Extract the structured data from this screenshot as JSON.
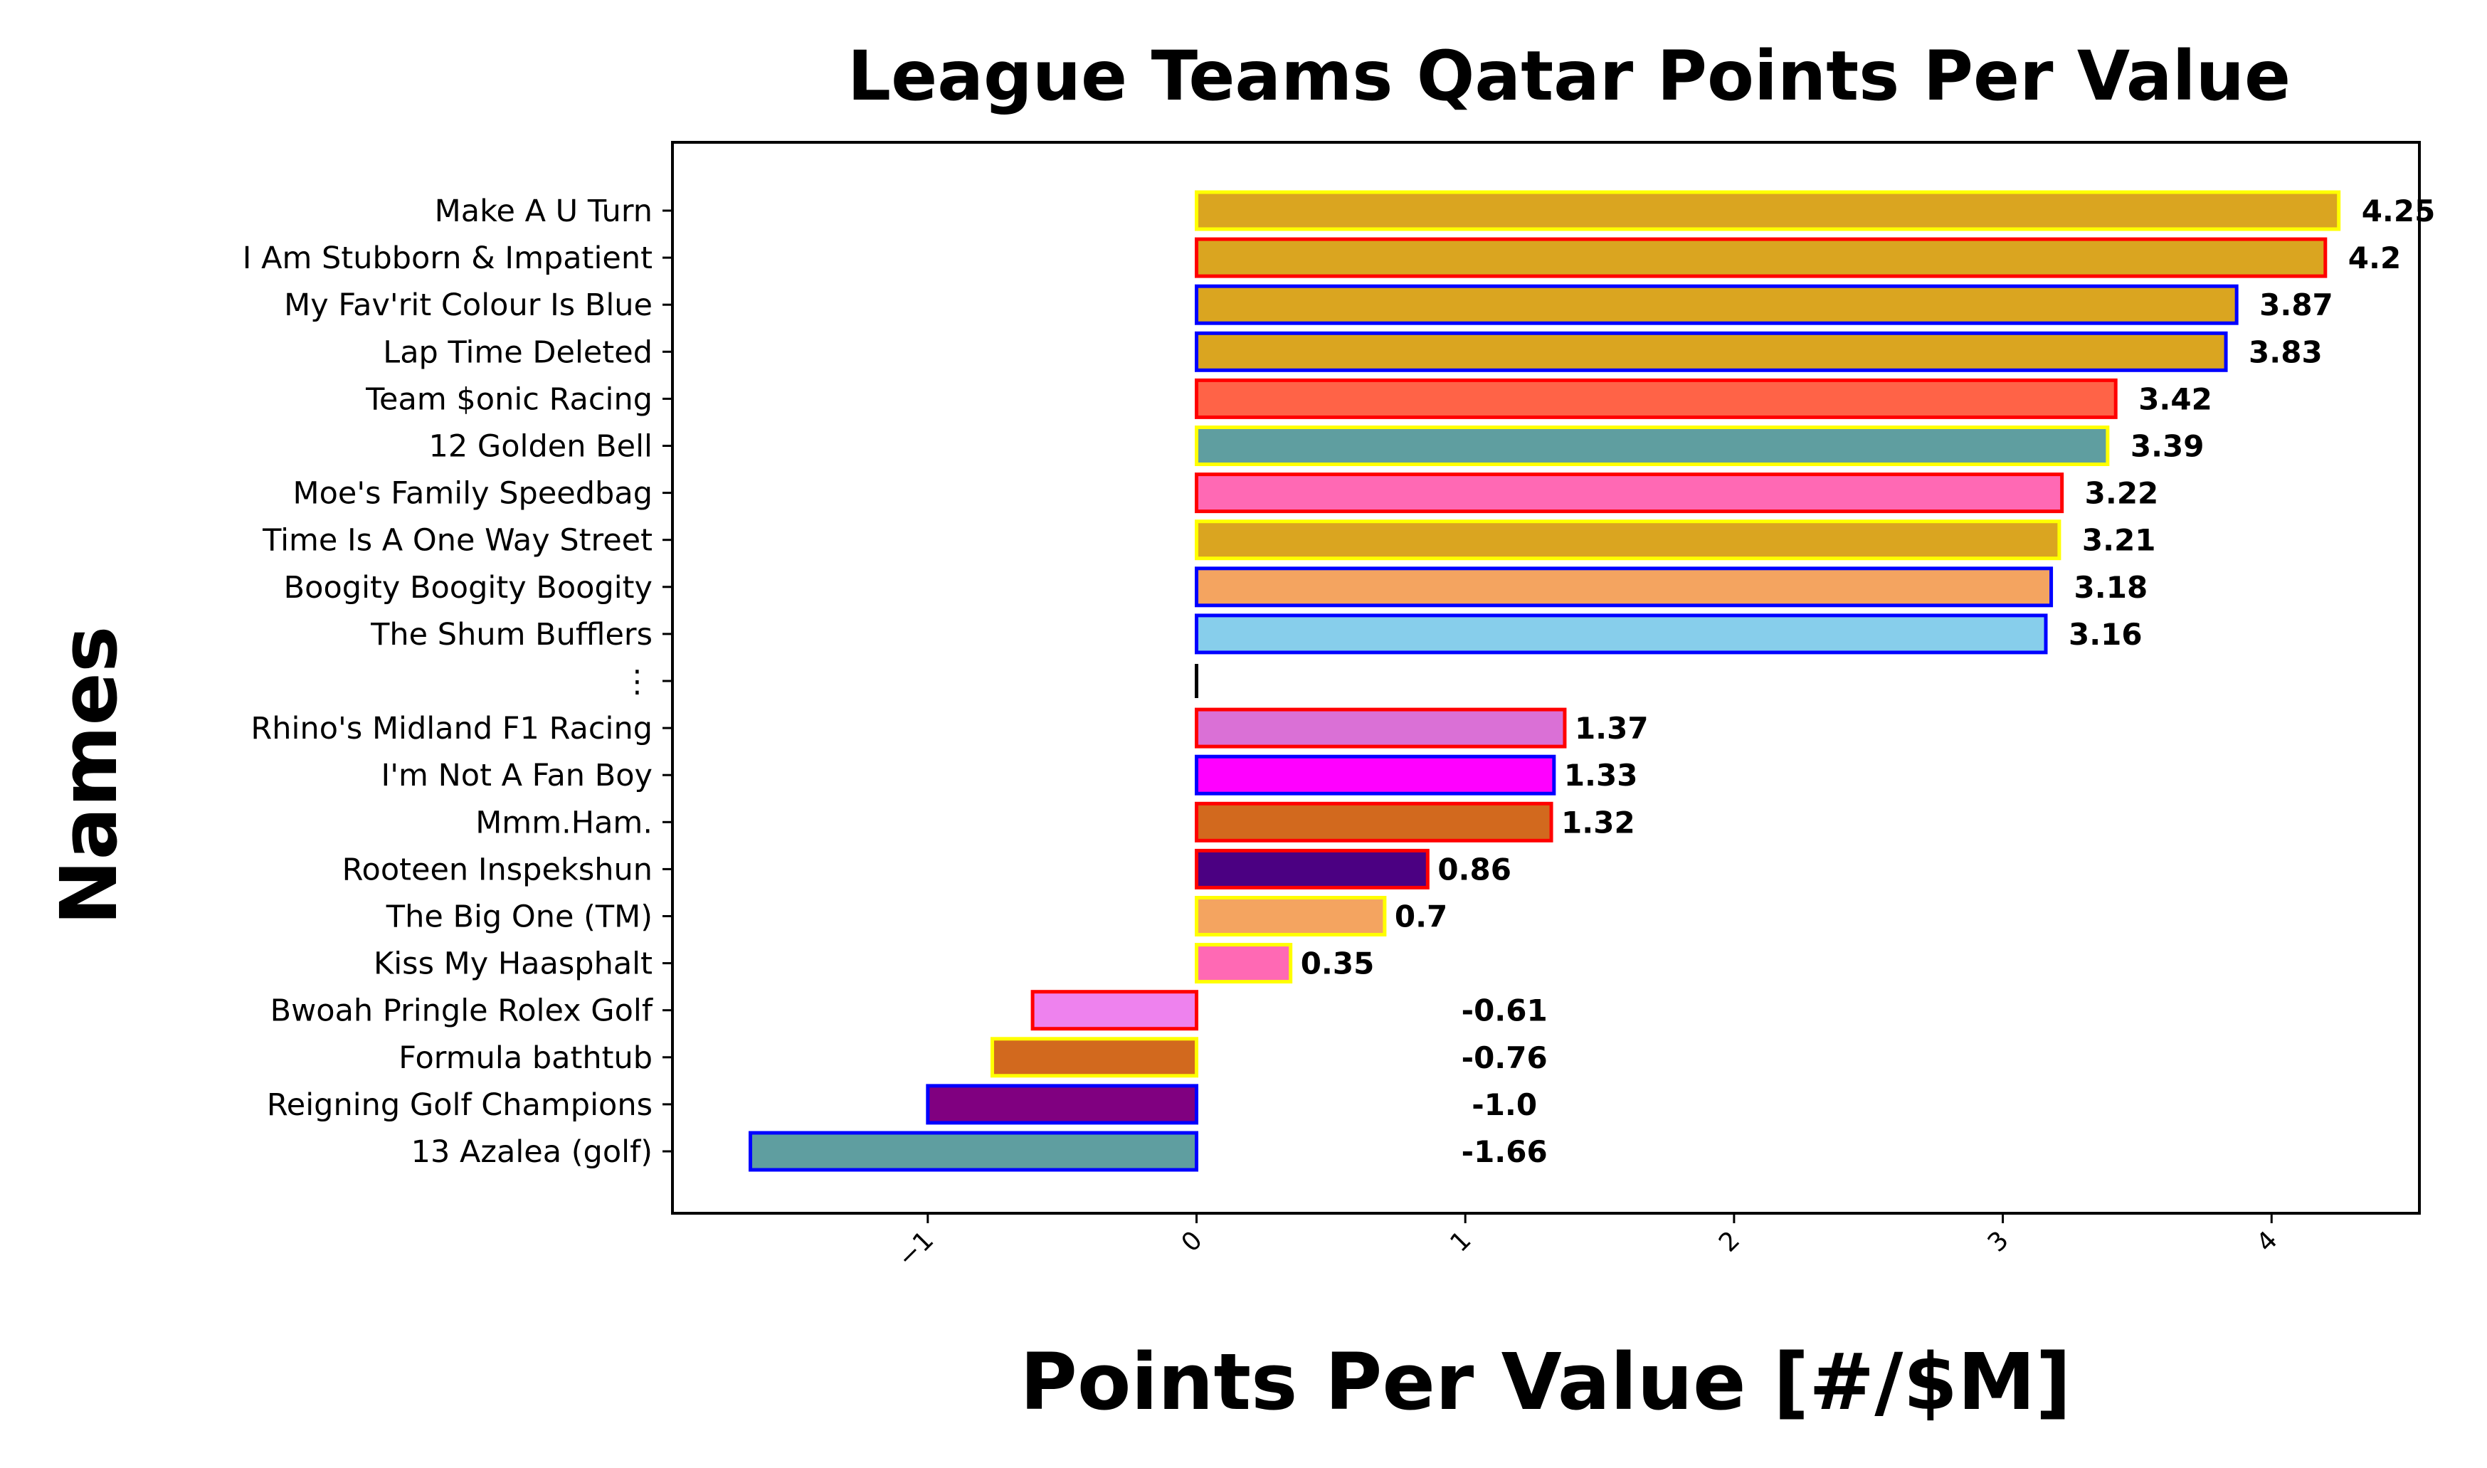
{
  "chart_data": {
    "type": "bar",
    "orientation": "horizontal",
    "title": "League Teams Qatar Points Per Value",
    "xlabel": "Points Per Value [#/$M]",
    "ylabel": "Names",
    "xlim": [
      -1.95,
      4.55
    ],
    "xticks": [
      -1,
      0,
      1,
      2,
      3,
      4
    ],
    "xtick_labels": [
      "−1",
      "0",
      "1",
      "2",
      "3",
      "4"
    ],
    "grid": false,
    "legend": "none",
    "bars": [
      {
        "name": "Make A U Turn",
        "value": 4.25,
        "label": "4.25",
        "fill": "#DAA520",
        "edge": "#FFFF00"
      },
      {
        "name": "I Am Stubborn & Impatient",
        "value": 4.2,
        "label": "4.2",
        "fill": "#DAA520",
        "edge": "#FF0000"
      },
      {
        "name": "My Fav'rit Colour Is Blue",
        "value": 3.87,
        "label": "3.87",
        "fill": "#DAA520",
        "edge": "#0000FF"
      },
      {
        "name": "Lap Time Deleted",
        "value": 3.83,
        "label": "3.83",
        "fill": "#DAA520",
        "edge": "#0000FF"
      },
      {
        "name": "Team $onic Racing",
        "value": 3.42,
        "label": "3.42",
        "fill": "#FF6347",
        "edge": "#FF0000"
      },
      {
        "name": "12 Golden Bell",
        "value": 3.39,
        "label": "3.39",
        "fill": "#5F9EA0",
        "edge": "#FFFF00"
      },
      {
        "name": "Moe's Family Speedbag",
        "value": 3.22,
        "label": "3.22",
        "fill": "#FF69B4",
        "edge": "#FF0000"
      },
      {
        "name": "Time Is A One Way Street",
        "value": 3.21,
        "label": "3.21",
        "fill": "#DAA520",
        "edge": "#FFFF00"
      },
      {
        "name": "Boogity Boogity Boogity",
        "value": 3.18,
        "label": "3.18",
        "fill": "#F4A460",
        "edge": "#0000FF"
      },
      {
        "name": "The Shum Bufflers",
        "value": 3.16,
        "label": "3.16",
        "fill": "#87CEEB",
        "edge": "#0000FF"
      },
      {
        "name": "⋮",
        "value": 0,
        "label": "",
        "fill": "#000000",
        "edge": "#000000",
        "separator": true
      },
      {
        "name": "Rhino's Midland F1 Racing",
        "value": 1.37,
        "label": "1.37",
        "fill": "#DA70D6",
        "edge": "#FF0000"
      },
      {
        "name": "I'm Not A Fan Boy",
        "value": 1.33,
        "label": "1.33",
        "fill": "#FF00FF",
        "edge": "#0000FF"
      },
      {
        "name": "Mmm.Ham.",
        "value": 1.32,
        "label": "1.32",
        "fill": "#D2691E",
        "edge": "#FF0000"
      },
      {
        "name": "Rooteen Inspekshun",
        "value": 0.86,
        "label": "0.86",
        "fill": "#4B0082",
        "edge": "#FF0000"
      },
      {
        "name": "The Big One (TM)",
        "value": 0.7,
        "label": "0.7",
        "fill": "#F4A460",
        "edge": "#FFFF00"
      },
      {
        "name": "Kiss My Haasphalt",
        "value": 0.35,
        "label": "0.35",
        "fill": "#FF69B4",
        "edge": "#FFFF00"
      },
      {
        "name": "Bwoah Pringle Rolex Golf",
        "value": -0.61,
        "label": "-0.61",
        "fill": "#EE82EE",
        "edge": "#FF0000"
      },
      {
        "name": "Formula bathtub",
        "value": -0.76,
        "label": "-0.76",
        "fill": "#D2691E",
        "edge": "#FFFF00"
      },
      {
        "name": "Reigning Golf Champions",
        "value": -1.0,
        "label": "-1.0",
        "fill": "#800080",
        "edge": "#0000FF"
      },
      {
        "name": "13 Azalea (golf)",
        "value": -1.66,
        "label": "-1.66",
        "fill": "#5F9EA0",
        "edge": "#0000FF"
      }
    ]
  }
}
